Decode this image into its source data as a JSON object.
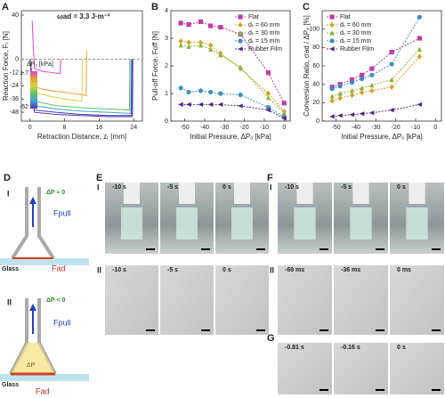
{
  "chart_data": [
    {
      "type": "line",
      "panel": "A",
      "annotation": "ωad = 3.3 J·m⁻²",
      "xlabel": "Retraction Distance, zᵣ [mm]",
      "ylabel": "Reaction Force, Fᵣ [N]",
      "xlim": [
        -2,
        26
      ],
      "xticks": [
        0,
        8,
        16,
        24
      ],
      "ylim": [
        -56,
        44
      ],
      "yticks": [
        40,
        0,
        -12,
        -24,
        -36,
        -48
      ],
      "colorbar": {
        "title": "ΔPₒ [kPa]",
        "ticks": [
          1.7,
          -52
        ]
      },
      "series": [
        {
          "color": "#e040d8",
          "marker": "none",
          "x": [
            0.5,
            1,
            3,
            5,
            7,
            7.1
          ],
          "values": [
            35,
            -8,
            -11,
            -12,
            -13,
            0
          ]
        },
        {
          "color": "#e8a030",
          "marker": "none",
          "x": [
            0,
            1,
            4,
            8,
            12,
            13,
            13.1
          ],
          "values": [
            0,
            -25,
            -28,
            -30,
            -32,
            -33,
            8
          ]
        },
        {
          "color": "#d4d040",
          "marker": "none",
          "x": [
            0,
            1,
            4,
            8,
            12,
            12.1
          ],
          "values": [
            0,
            -30,
            -33,
            -36,
            -38,
            0
          ]
        },
        {
          "color": "#60c060",
          "marker": "none",
          "x": [
            0,
            1,
            6,
            12,
            18,
            23,
            23.1
          ],
          "values": [
            0,
            -38,
            -42,
            -44,
            -45,
            -46,
            0
          ]
        },
        {
          "color": "#40a0e0",
          "marker": "none",
          "x": [
            0,
            1,
            6,
            12,
            18,
            23.3,
            23.4
          ],
          "values": [
            0,
            -42,
            -45,
            -47,
            -48,
            -49,
            0
          ]
        },
        {
          "color": "#3040c0",
          "marker": "none",
          "x": [
            0,
            1,
            6,
            12,
            18,
            23.5,
            23.6
          ],
          "values": [
            0,
            -46,
            -48,
            -50,
            -51,
            -51,
            0
          ]
        },
        {
          "color": "#6030a0",
          "marker": "none",
          "x": [
            0,
            1,
            6,
            12,
            18,
            23.7,
            23.8
          ],
          "values": [
            0,
            -48,
            -50,
            -51,
            -52,
            -52,
            0
          ]
        }
      ]
    },
    {
      "type": "line",
      "panel": "B",
      "legend": "upper-right",
      "xlabel": "Initial Pressure, ΔPₒ [kPa]",
      "ylabel": "Pull-off Force, Foff [N]",
      "xlim": [
        -57,
        3
      ],
      "xticks": [
        -50,
        -40,
        -30,
        -20,
        -10,
        0
      ],
      "ylim": [
        0,
        4
      ],
      "yticks": [
        0,
        1,
        2,
        3,
        4
      ],
      "series": [
        {
          "name": "Flat",
          "color": "#c03aa8",
          "marker": "square",
          "x": [
            -52,
            -48,
            -42,
            -37,
            -32,
            -22,
            -8,
            0
          ],
          "values": [
            3.55,
            3.5,
            3.6,
            3.45,
            3.4,
            3.15,
            1.75,
            0.65
          ]
        },
        {
          "name": "dₜ = 60 mm",
          "color": "#d6a21e",
          "marker": "diamond",
          "x": [
            -52,
            -48,
            -42,
            -37,
            -32,
            -22,
            -8,
            0
          ],
          "values": [
            2.9,
            2.85,
            2.85,
            2.75,
            2.45,
            1.9,
            1.0,
            0.35
          ]
        },
        {
          "name": "dₜ = 30 mm",
          "color": "#8bb23a",
          "marker": "triangle",
          "x": [
            -52,
            -48,
            -42,
            -37,
            -32,
            -22,
            -8,
            0
          ],
          "values": [
            2.75,
            2.7,
            2.75,
            2.6,
            2.4,
            1.95,
            0.85,
            0.3
          ]
        },
        {
          "name": "dₜ = 15 mm",
          "color": "#3f8fc4",
          "marker": "circle",
          "x": [
            -52,
            -48,
            -42,
            -37,
            -32,
            -22,
            -8,
            0
          ],
          "values": [
            1.2,
            1.05,
            1.1,
            1.05,
            1.0,
            0.95,
            0.5,
            0.15
          ]
        },
        {
          "name": "Rubber Film",
          "color": "#4a2b8a",
          "marker": "ltriangle",
          "x": [
            -52,
            -48,
            -42,
            -37,
            -32,
            -22,
            -8,
            0
          ],
          "values": [
            0.6,
            0.6,
            0.6,
            0.6,
            0.6,
            0.55,
            0.4,
            0.1
          ]
        }
      ]
    },
    {
      "type": "line",
      "panel": "C",
      "legend": "upper-left",
      "xlabel": "Initial Pressure, ΔPₒ [kPa]",
      "ylabel": "Conversion Ratio, σad / ΔPₒ [%]",
      "xlim": [
        -57,
        3
      ],
      "xticks": [
        -50,
        -40,
        -30,
        -20,
        -10,
        0
      ],
      "ylim": [
        0,
        120
      ],
      "yticks": [
        0,
        20,
        40,
        60,
        80,
        100
      ],
      "series": [
        {
          "name": "Flat",
          "color": "#c03aa8",
          "marker": "square",
          "x": [
            -52,
            -48,
            -42,
            -37,
            -32,
            -22,
            -8
          ],
          "values": [
            37,
            40,
            45,
            50,
            57,
            75,
            90
          ]
        },
        {
          "name": "dₜ = 60 mm",
          "color": "#d6a21e",
          "marker": "diamond",
          "x": [
            -52,
            -48,
            -42,
            -37,
            -32,
            -22,
            -8
          ],
          "values": [
            22,
            25,
            28,
            31,
            33,
            37,
            70
          ]
        },
        {
          "name": "dₜ = 30 mm",
          "color": "#8bb23a",
          "marker": "triangle",
          "x": [
            -52,
            -48,
            -42,
            -37,
            -32,
            -22,
            -8
          ],
          "values": [
            27,
            30,
            33,
            36,
            39,
            45,
            78
          ]
        },
        {
          "name": "dₜ = 15 mm",
          "color": "#3f8fc4",
          "marker": "circle",
          "x": [
            -52,
            -48,
            -42,
            -37,
            -32,
            -22,
            -8
          ],
          "values": [
            35,
            38,
            42,
            46,
            50,
            62,
            113
          ]
        },
        {
          "name": "Rubber Film",
          "color": "#4a2b8a",
          "marker": "ltriangle",
          "x": [
            -52,
            -48,
            -42,
            -37,
            -32,
            -22,
            -8
          ],
          "values": [
            5,
            6,
            7,
            8,
            9,
            12,
            18
          ]
        }
      ]
    }
  ],
  "figure": {
    "D": {
      "label": "D",
      "rows": [
        {
          "label": "I",
          "pressure": "ΔP ≈ 0",
          "pull": "Fpull",
          "substrate": "Glass",
          "adhesion": "Fad"
        },
        {
          "label": "II",
          "pressure": "ΔP < 0",
          "inner": "ΔP",
          "pull": "Fpull",
          "substrate": "Glass",
          "adhesion": "Fad"
        }
      ]
    },
    "E": {
      "label": "E",
      "rows": [
        {
          "label": "I",
          "times": [
            "-10 s",
            "-5 s",
            "0 s"
          ]
        },
        {
          "label": "II",
          "times": [
            "-10 s",
            "-5 s",
            "0 s"
          ]
        }
      ]
    },
    "F": {
      "label": "F",
      "rows": [
        {
          "label": "I",
          "times": [
            "-10 s",
            "-5 s",
            "0 s"
          ]
        },
        {
          "label": "II",
          "times": [
            "-69 ms",
            "-36 ms",
            "0 ms"
          ]
        }
      ]
    },
    "G": {
      "label": "G",
      "times": [
        "-0.81 s",
        "-0.16 s",
        "0 s"
      ]
    }
  }
}
